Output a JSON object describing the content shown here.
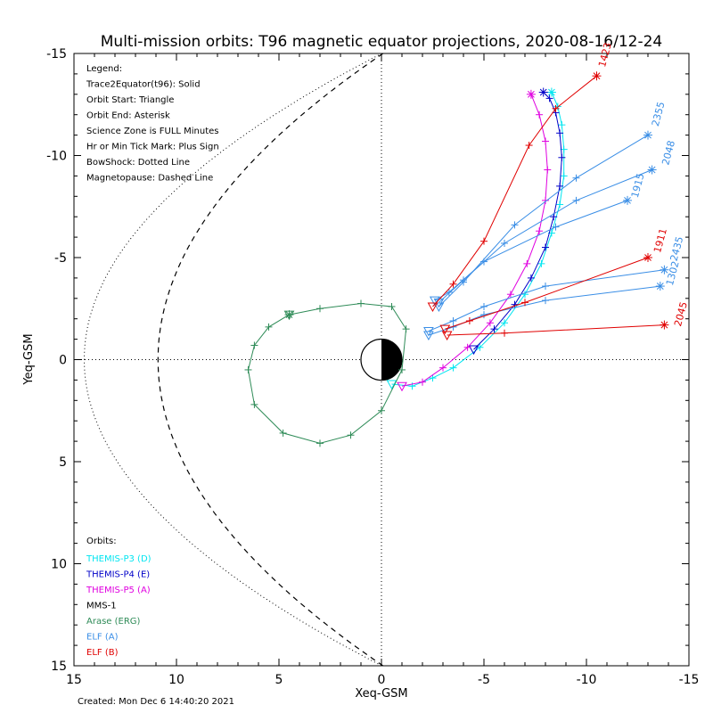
{
  "chart_data": {
    "type": "line",
    "title": "Multi-mission orbits: T96 magnetic equator projections, 2020-08-16/12-24",
    "xlabel": "Xeq-GSM",
    "ylabel": "Yeq-GSM",
    "xlim": [
      15,
      -15
    ],
    "ylim": [
      -15,
      15
    ],
    "xticks": [
      15,
      10,
      5,
      0,
      -5,
      -10,
      -15
    ],
    "yticks": [
      -15,
      -10,
      -5,
      0,
      5,
      10,
      15
    ],
    "grid": "dotted axes lines through origin",
    "legend_lines": [
      "Legend:",
      "Trace2Equator(t96): Solid",
      "Orbit Start: Triangle",
      "Orbit End: Asterisk",
      "Science Zone is FULL Minutes",
      "Hr or Min Tick Mark: Plus Sign",
      "BowShock: Dotted Line",
      "Magnetopause: Dashed Line"
    ],
    "orbits_title": "Orbits:",
    "orbits": [
      {
        "name": "THEMIS-P3 (D)",
        "color": "#00e5f0"
      },
      {
        "name": "THEMIS-P4 (E)",
        "color": "#0000c8"
      },
      {
        "name": "THEMIS-P5 (A)",
        "color": "#e000e0"
      },
      {
        "name": "MMS-1",
        "color": "#000000"
      },
      {
        "name": "Arase (ERG)",
        "color": "#2e8b57"
      },
      {
        "name": "ELF (A)",
        "color": "#3a8ee6"
      },
      {
        "name": "ELF (B)",
        "color": "#e00000"
      }
    ],
    "created": "Created: Mon Dec  6 14:40:20 2021",
    "series": [
      {
        "name": "THEMIS-P3 (D)",
        "color": "#00e5f0",
        "x": [
          -0.5,
          -1.5,
          -2.5,
          -3.5,
          -4.8,
          -6.0,
          -7.0,
          -7.8,
          -8.3,
          -8.7,
          -8.9,
          -8.9,
          -8.8,
          -8.6,
          -8.3
        ],
        "y": [
          1.2,
          1.3,
          0.9,
          0.4,
          -0.6,
          -1.8,
          -3.2,
          -4.7,
          -6.2,
          -7.6,
          -9.0,
          -10.3,
          -11.5,
          -12.4,
          -13.1
        ]
      },
      {
        "name": "THEMIS-P4 (E)",
        "color": "#0000c8",
        "x": [
          -4.5,
          -5.5,
          -6.5,
          -7.3,
          -8.0,
          -8.4,
          -8.7,
          -8.8,
          -8.7,
          -8.5,
          -8.2,
          -7.9
        ],
        "y": [
          -0.5,
          -1.5,
          -2.7,
          -4.0,
          -5.5,
          -7.0,
          -8.5,
          -9.9,
          -11.1,
          -12.1,
          -12.8,
          -13.1
        ]
      },
      {
        "name": "THEMIS-P5 (A)",
        "color": "#e000e0",
        "x": [
          -1.0,
          -2.0,
          -3.0,
          -4.2,
          -5.3,
          -6.3,
          -7.1,
          -7.7,
          -8.0,
          -8.1,
          -8.0,
          -7.7,
          -7.3
        ],
        "y": [
          1.3,
          1.1,
          0.4,
          -0.6,
          -1.8,
          -3.2,
          -4.7,
          -6.3,
          -7.8,
          -9.3,
          -10.7,
          -12.0,
          -13.0
        ]
      },
      {
        "name": "Arase (ERG)",
        "color": "#2e8b57",
        "x": [
          4.5,
          3.0,
          1.0,
          -0.5,
          -1.2,
          -1.0,
          0.0,
          1.5,
          3.0,
          4.8,
          6.2,
          6.5,
          6.2,
          5.5,
          4.5
        ],
        "y": [
          -2.2,
          -2.5,
          -2.75,
          -2.6,
          -1.5,
          0.5,
          2.5,
          3.7,
          4.1,
          3.6,
          2.2,
          0.5,
          -0.7,
          -1.6,
          -2.2
        ]
      },
      {
        "name": "ELF (A) 2355",
        "color": "#3a8ee6",
        "x": [
          -2.8,
          -4.0,
          -6.5,
          -9.5,
          -13.0
        ],
        "y": [
          -2.6,
          -3.8,
          -6.6,
          -8.9,
          -11.0
        ]
      },
      {
        "name": "ELF (A) 2048",
        "color": "#3a8ee6",
        "x": [
          -2.8,
          -4.0,
          -6.0,
          -9.5,
          -13.2
        ],
        "y": [
          -2.8,
          -3.9,
          -5.7,
          -7.8,
          -9.3
        ]
      },
      {
        "name": "ELF (A) 1915",
        "color": "#3a8ee6",
        "x": [
          -2.6,
          -3.3,
          -5.0,
          -8.5,
          -12.0
        ],
        "y": [
          -2.9,
          -3.3,
          -4.8,
          -6.5,
          -7.8
        ]
      },
      {
        "name": "ELF (A) 1302",
        "color": "#3a8ee6",
        "x": [
          -2.3,
          -3.5,
          -5.0,
          -8.0,
          -13.8
        ],
        "y": [
          -1.4,
          -1.9,
          -2.6,
          -3.6,
          -4.4
        ]
      },
      {
        "name": "ELF (A) 2435",
        "color": "#3a8ee6",
        "x": [
          -2.3,
          -3.5,
          -5.0,
          -8.0,
          -13.6
        ],
        "y": [
          -1.2,
          -1.6,
          -2.2,
          -2.9,
          -3.6
        ]
      },
      {
        "name": "ELF (B) 1423",
        "color": "#e00000",
        "x": [
          -2.5,
          -3.5,
          -5.0,
          -7.2,
          -8.5,
          -10.5
        ],
        "y": [
          -2.6,
          -3.7,
          -5.8,
          -10.5,
          -12.3,
          -13.9
        ]
      },
      {
        "name": "ELF (B) 1911",
        "color": "#e00000",
        "x": [
          -3.1,
          -4.3,
          -7.0,
          -13.0
        ],
        "y": [
          -1.5,
          -1.9,
          -2.8,
          -5.0
        ]
      },
      {
        "name": "ELF (B) 2045",
        "color": "#e00000",
        "x": [
          -3.2,
          -6.0,
          -13.8
        ],
        "y": [
          -1.2,
          -1.3,
          -1.7
        ]
      }
    ],
    "time_labels": [
      {
        "text": "1423",
        "color": "#e00000",
        "x": -10.9,
        "y": -14.3
      },
      {
        "text": "2355",
        "color": "#3a8ee6",
        "x": -13.5,
        "y": -11.4
      },
      {
        "text": "2048",
        "color": "#3a8ee6",
        "x": -14.0,
        "y": -9.5
      },
      {
        "text": "1915",
        "color": "#3a8ee6",
        "x": -12.5,
        "y": -7.9
      },
      {
        "text": "1911",
        "color": "#e00000",
        "x": -13.6,
        "y": -5.2
      },
      {
        "text": "1302",
        "color": "#3a8ee6",
        "x": -14.2,
        "y": -3.6
      },
      {
        "text": "2435",
        "color": "#3a8ee6",
        "x": -14.4,
        "y": -4.8
      },
      {
        "text": "2045",
        "color": "#e00000",
        "x": -14.6,
        "y": -1.6
      }
    ]
  }
}
